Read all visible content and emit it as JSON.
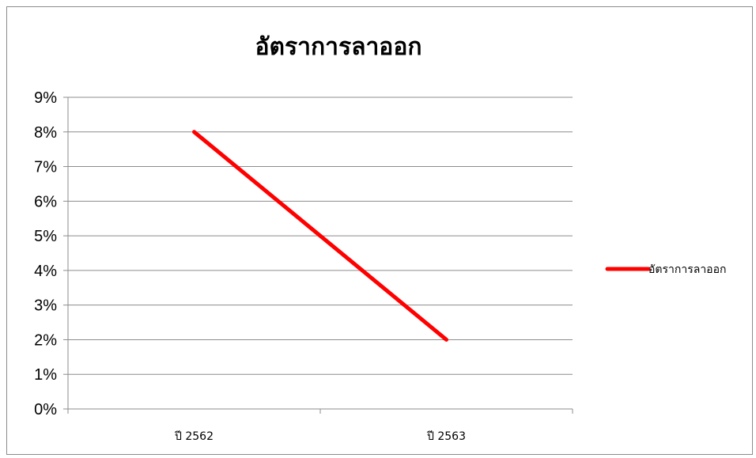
{
  "chart_data": {
    "type": "line",
    "title": "อัตราการลาออก",
    "xlabel": "",
    "ylabel": "",
    "categories": [
      "ปี 2562",
      "ปี 2563"
    ],
    "series": [
      {
        "name": "อัตราการลาออก",
        "values": [
          8,
          2
        ],
        "color": "#ff0000"
      }
    ],
    "ylim": [
      0,
      9
    ],
    "yticks": [
      "0%",
      "1%",
      "2%",
      "3%",
      "4%",
      "5%",
      "6%",
      "7%",
      "8%",
      "9%"
    ],
    "grid": true,
    "legend": "right"
  }
}
